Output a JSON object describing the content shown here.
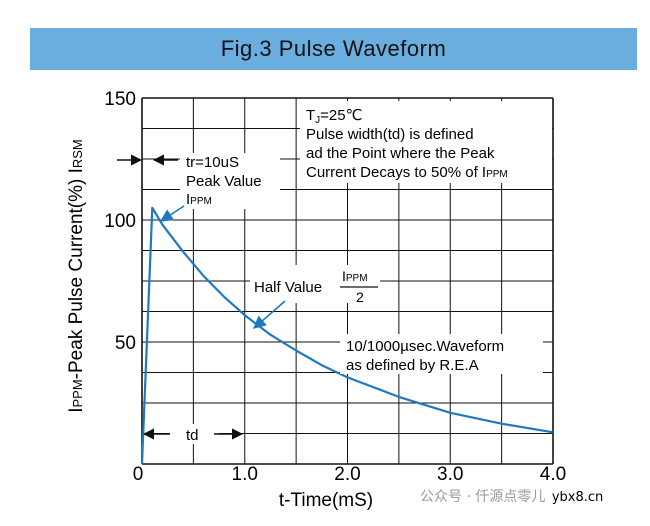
{
  "title": "Fig.3 Pulse Waveform",
  "chart_data": {
    "type": "line",
    "title": "Fig.3 Pulse Waveform",
    "xlabel": "t-Time(mS)",
    "ylabel_main": "I",
    "ylabel_main_sub": "PPM",
    "ylabel_rest": "-Peak Pulse Current(%) I",
    "ylabel_rest_sub": "RSM",
    "xlim": [
      0,
      4.0
    ],
    "ylim": [
      0,
      150
    ],
    "x_ticks": [
      "0",
      "1.0",
      "2.0",
      "3.0",
      "4.0"
    ],
    "x_tick_values": [
      0,
      1,
      2,
      3,
      4
    ],
    "y_ticks": [
      "0",
      "50",
      "100",
      "150"
    ],
    "y_tick_values": [
      0,
      50,
      100,
      150
    ],
    "grid": true,
    "series": [
      {
        "name": "10/1000µsec. Waveform",
        "color": "#1f78c1",
        "x": [
          0,
          0.1,
          0.2,
          0.4,
          0.6,
          0.8,
          1.0,
          1.25,
          1.5,
          1.75,
          2.0,
          2.5,
          3.0,
          3.5,
          4.0
        ],
        "y": [
          0,
          105,
          98,
          87,
          77,
          68.5,
          61,
          53,
          46.5,
          40.5,
          35.5,
          27.5,
          21,
          16.5,
          13
        ]
      }
    ],
    "annotations": {
      "tj_main": "T",
      "tj_sub": "J",
      "tj_rest": "=25℃",
      "pw_line1": "Pulse width(td) is defined",
      "pw_line2": "ad the Point where the Peak",
      "pw_line3_main": "Current Decays to 50% of I",
      "pw_line3_sub": "PPM",
      "tr_label": "tr=10uS",
      "peak_label": "Peak Value",
      "peak_main": "I",
      "peak_sub": "PPM",
      "half_label": "Half Value",
      "half_frac_main": "I",
      "half_frac_sub": "PPM",
      "half_frac_den": "2",
      "wave_line1": "10/1000µsec.Waveform",
      "wave_line2": "as defined by R.E.A",
      "td_label": "td"
    }
  },
  "watermark": {
    "text": "公众号 · 仟源点零儿",
    "site": "ybx8.cn"
  }
}
